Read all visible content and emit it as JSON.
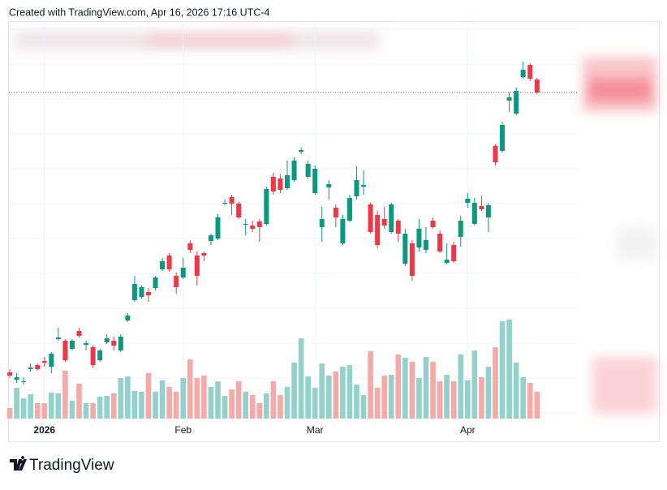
{
  "header": "Created with TradingView.com, Apr 16, 2026 17:16 UTC-4",
  "logo": "TradingView",
  "chart_data": {
    "type": "candlestick",
    "up_color": "#089981",
    "down_color": "#f23645",
    "volume_up_color": "#92d2cc",
    "volume_down_color": "#f7a9a7",
    "grid": true,
    "ylim": [
      88,
      574
    ],
    "volume_ylim": [
      0,
      300
    ],
    "xticks": [
      {
        "value": 5,
        "label": "2026"
      },
      {
        "value": 25,
        "label": "Feb"
      },
      {
        "value": 44,
        "label": "Mar"
      },
      {
        "value": 66,
        "label": "Apr"
      }
    ],
    "open": [
      141,
      132,
      129,
      145,
      150,
      155,
      148,
      182,
      180,
      170,
      192,
      175,
      172,
      156,
      178,
      180,
      168,
      205,
      230,
      234,
      240,
      245,
      268,
      285,
      260,
      258,
      300,
      285,
      288,
      303,
      306,
      350,
      357,
      349,
      324,
      322,
      327,
      324,
      382,
      380,
      368,
      378,
      413,
      382,
      362,
      320,
      369,
      344,
      300,
      328,
      358,
      370,
      348,
      335,
      330,
      314,
      328,
      275,
      300,
      295,
      292,
      328,
      312,
      276,
      298,
      308,
      350,
      324,
      346,
      332,
      420,
      414,
      476,
      460,
      505,
      520,
      502
    ],
    "high": [
      145,
      140,
      135,
      152,
      152,
      160,
      166,
      196,
      182,
      182,
      196,
      180,
      174,
      170,
      188,
      185,
      188,
      214,
      260,
      248,
      245,
      260,
      282,
      288,
      264,
      282,
      304,
      290,
      290,
      312,
      336,
      354,
      360,
      351,
      330,
      328,
      330,
      370,
      387,
      385,
      402,
      406,
      418,
      402,
      396,
      345,
      378,
      348,
      335,
      360,
      395,
      390,
      350,
      340,
      345,
      350,
      330,
      318,
      304,
      330,
      320,
      332,
      316,
      300,
      302,
      334,
      362,
      356,
      358,
      350,
      422,
      450,
      486,
      492,
      524,
      522,
      504
    ],
    "low": [
      134,
      128,
      126,
      142,
      143,
      148,
      140,
      180,
      154,
      168,
      184,
      168,
      147,
      154,
      176,
      168,
      166,
      203,
      228,
      232,
      228,
      242,
      266,
      265,
      238,
      256,
      288,
      248,
      278,
      298,
      304,
      347,
      335,
      330,
      310,
      314,
      302,
      322,
      360,
      362,
      366,
      376,
      410,
      380,
      360,
      302,
      354,
      320,
      298,
      326,
      354,
      360,
      312,
      294,
      318,
      312,
      302,
      272,
      254,
      290,
      288,
      318,
      288,
      274,
      276,
      296,
      344,
      322,
      340,
      314,
      396,
      412,
      462,
      458,
      503,
      500,
      484
    ],
    "close": [
      137,
      135,
      130,
      147,
      145,
      153,
      164,
      184,
      156,
      180,
      186,
      177,
      150,
      168,
      183,
      174,
      185,
      211,
      250,
      246,
      236,
      258,
      278,
      268,
      246,
      270,
      292,
      260,
      285,
      310,
      332,
      350,
      349,
      332,
      324,
      318,
      320,
      367,
      364,
      366,
      384,
      402,
      415,
      398,
      392,
      330,
      373,
      332,
      330,
      356,
      378,
      372,
      314,
      298,
      322,
      348,
      312,
      312,
      260,
      318,
      304,
      320,
      290,
      280,
      278,
      328,
      355,
      350,
      342,
      347,
      400,
      446,
      480,
      488,
      514,
      503,
      486
    ],
    "volume": [
      13,
      38,
      25,
      30,
      19,
      19,
      32,
      31,
      59,
      22,
      43,
      19,
      19,
      27,
      28,
      31,
      50,
      52,
      34,
      33,
      56,
      33,
      47,
      39,
      33,
      50,
      73,
      50,
      53,
      39,
      46,
      28,
      36,
      46,
      33,
      29,
      19,
      31,
      46,
      29,
      39,
      69,
      99,
      52,
      38,
      68,
      53,
      58,
      64,
      66,
      42,
      29,
      83,
      38,
      53,
      54,
      79,
      75,
      70,
      50,
      76,
      70,
      46,
      54,
      46,
      79,
      47,
      84,
      51,
      64,
      88,
      120,
      122,
      69,
      51,
      44,
      33
    ]
  }
}
